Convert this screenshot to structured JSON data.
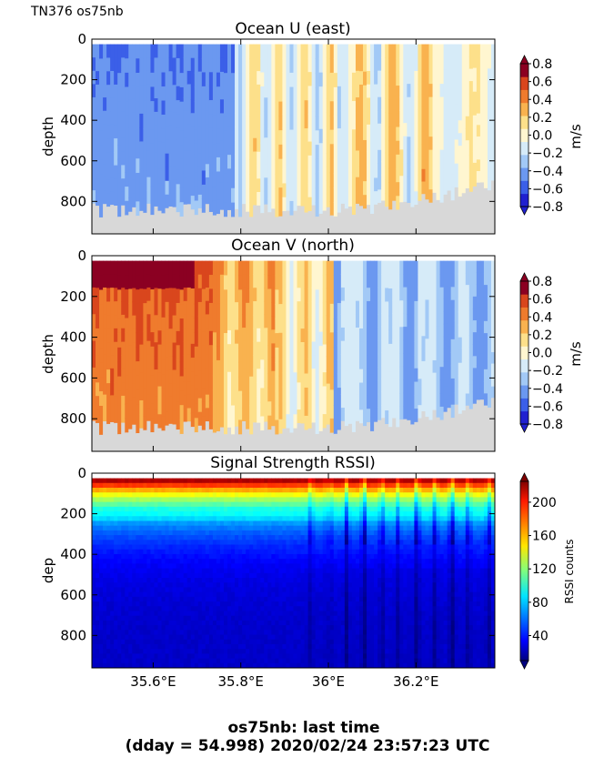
{
  "header": {
    "label": "TN376 os75nb"
  },
  "footer": {
    "line1": "os75nb: last time",
    "line2": "(dday = 54.998) 2020/02/24 23:57:23 UTC"
  },
  "chart_data": [
    {
      "type": "heatmap",
      "title": "Ocean U (east)",
      "ylabel": "depth",
      "yticks": [
        "0",
        "200",
        "400",
        "600",
        "800"
      ],
      "ylim": [
        960,
        0
      ],
      "xlim": [
        35.46,
        36.38
      ],
      "colorbar": {
        "label": "m/s",
        "ticks": [
          "0.8",
          "0.6",
          "0.4",
          "0.2",
          "0.0",
          "−0.2",
          "−0.4",
          "−0.6",
          "−0.8"
        ],
        "range": [
          -0.8,
          0.8
        ]
      },
      "palette": [
        "#2020d0",
        "#3b5fe8",
        "#6b98f0",
        "#a2c9f6",
        "#d6ebf8",
        "#fff6d0",
        "#fde08a",
        "#f9b24f",
        "#ef7b2d",
        "#d9461d",
        "#8b0022"
      ]
    },
    {
      "type": "heatmap",
      "title": "Ocean V (north)",
      "ylabel": "depth",
      "yticks": [
        "0",
        "200",
        "400",
        "600",
        "800"
      ],
      "ylim": [
        960,
        0
      ],
      "xlim": [
        35.46,
        36.38
      ],
      "colorbar": {
        "label": "m/s",
        "ticks": [
          "0.8",
          "0.6",
          "0.4",
          "0.2",
          "0.0",
          "−0.2",
          "−0.4",
          "−0.6",
          "−0.8"
        ],
        "range": [
          -0.8,
          0.8
        ]
      },
      "palette": [
        "#2020d0",
        "#3b5fe8",
        "#6b98f0",
        "#a2c9f6",
        "#d6ebf8",
        "#fff6d0",
        "#fde08a",
        "#f9b24f",
        "#ef7b2d",
        "#d9461d",
        "#8b0022"
      ]
    },
    {
      "type": "heatmap",
      "title": "Signal Strength RSSI)",
      "ylabel": "dep",
      "yticks": [
        "0",
        "200",
        "400",
        "600",
        "800"
      ],
      "ylim": [
        960,
        0
      ],
      "xlim": [
        35.46,
        36.38
      ],
      "xticks": [
        "35.6°E",
        "35.8°E",
        "36°E",
        "36.2°E"
      ],
      "xtick_values": [
        35.6,
        35.8,
        36.0,
        36.2
      ],
      "colorbar": {
        "label": "RSSI counts",
        "ticks": [
          "200",
          "160",
          "120",
          "80",
          "40"
        ],
        "range": [
          10,
          225
        ]
      }
    }
  ]
}
